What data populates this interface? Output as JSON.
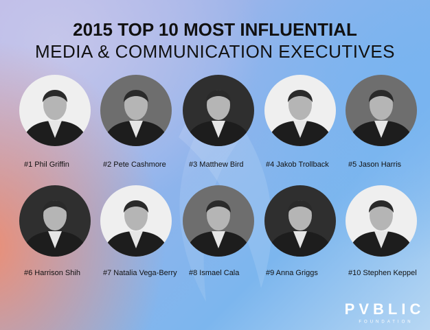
{
  "header": {
    "title_line1": "2015 TOP 10 MOST INFLUENTIAL",
    "title_line2": "MEDIA & COMMUNICATION EXECUTIVES"
  },
  "people": [
    {
      "label": "#1 Phil Griffin"
    },
    {
      "label": "#2 Pete Cashmore"
    },
    {
      "label": "#3 Matthew Bird"
    },
    {
      "label": "#4 Jakob Trollback"
    },
    {
      "label": "#5 Jason Harris"
    },
    {
      "label": "#6 Harrison Shih"
    },
    {
      "label": "#7 Natalia Vega-Berry"
    },
    {
      "label": "#8 Ismael Cala"
    },
    {
      "label": "#9 Anna Griggs"
    },
    {
      "label": "#10 Stephen Keppel"
    }
  ],
  "logo": {
    "name": "PVBLIC",
    "subtitle": "FOUNDATION"
  }
}
